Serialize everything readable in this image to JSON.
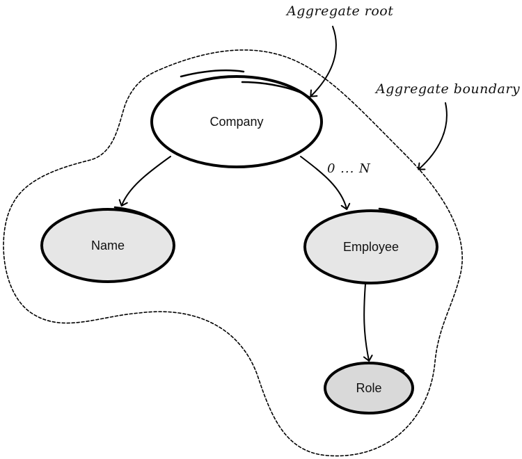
{
  "nodes": {
    "company": {
      "label": "Company",
      "fill": "#ffffff"
    },
    "name": {
      "label": "Name",
      "fill": "#e6e6e6"
    },
    "employee": {
      "label": "Employee",
      "fill": "#e6e6e6"
    },
    "role": {
      "label": "Role",
      "fill": "#d9d9d9"
    }
  },
  "edges": {
    "company_employee_multiplicity": "0 ... N"
  },
  "annotations": {
    "aggregate_root": "Aggregate root",
    "aggregate_boundary": "Aggregate boundary"
  }
}
